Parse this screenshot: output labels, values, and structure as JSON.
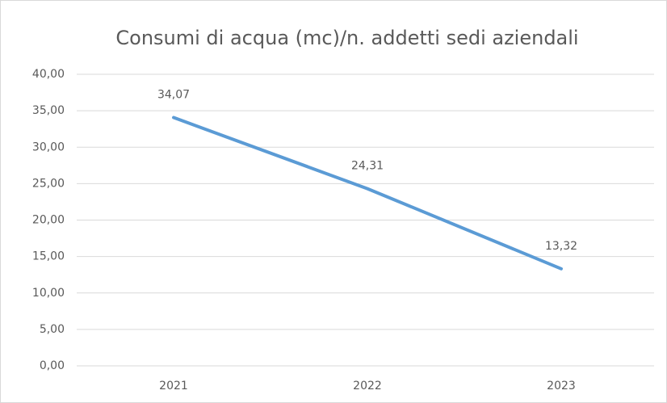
{
  "chart_data": {
    "type": "line",
    "title": "Consumi di acqua (mc)/n. addetti sedi aziendali",
    "categories": [
      "2021",
      "2022",
      "2023"
    ],
    "series": [
      {
        "color": "#5b9bd5",
        "values": [
          34.07,
          24.31,
          13.32
        ],
        "value_labels": [
          "34,07",
          "24,31",
          "13,32"
        ]
      }
    ],
    "ylim": [
      0,
      40
    ],
    "yticks": [
      {
        "value": 0,
        "label": "0,00"
      },
      {
        "value": 5,
        "label": "5,00"
      },
      {
        "value": 10,
        "label": "10,00"
      },
      {
        "value": 15,
        "label": "15,00"
      },
      {
        "value": 20,
        "label": "20,00"
      },
      {
        "value": 25,
        "label": "25,00"
      },
      {
        "value": 30,
        "label": "30,00"
      },
      {
        "value": 35,
        "label": "35,00"
      },
      {
        "value": 40,
        "label": "40,00"
      }
    ],
    "grid": true
  }
}
